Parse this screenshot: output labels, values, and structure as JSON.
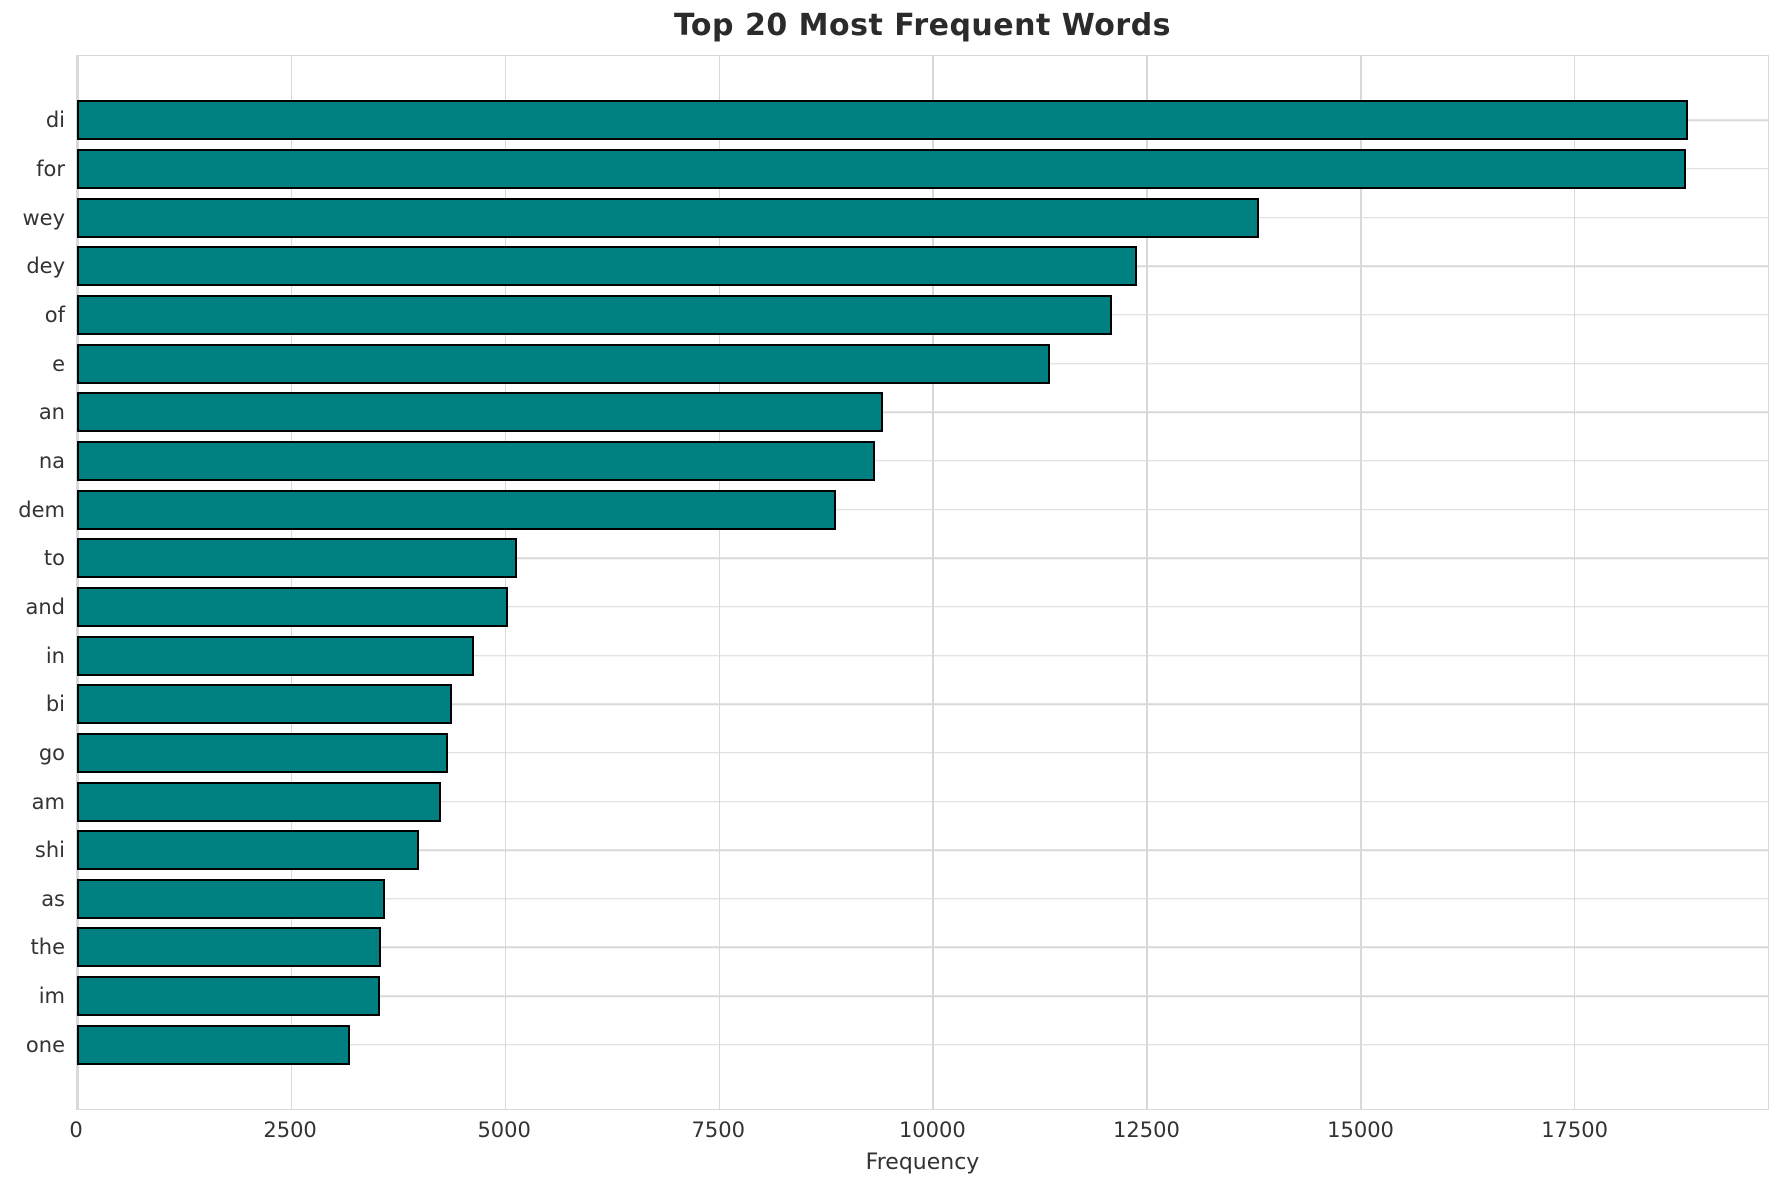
{
  "title": "Top 20 Most Frequent Words",
  "colors": {
    "bar_fill": "#008080",
    "bar_edge": "#000000",
    "grid": "#d9d9d9",
    "text": "#333333",
    "title_text": "#2b2b2b",
    "background": "#ffffff"
  },
  "chart_data": {
    "type": "bar",
    "orientation": "horizontal",
    "title": "Top 20 Most Frequent Words",
    "xlabel": "Frequency",
    "ylabel": "",
    "categories": [
      "di",
      "for",
      "wey",
      "dey",
      "of",
      "e",
      "an",
      "na",
      "dem",
      "to",
      "and",
      "in",
      "bi",
      "go",
      "am",
      "shi",
      "as",
      "the",
      "im",
      "one"
    ],
    "values": [
      18830,
      18810,
      13820,
      12390,
      12100,
      11370,
      9420,
      9330,
      8870,
      5140,
      5040,
      4640,
      4380,
      4340,
      4250,
      4000,
      3600,
      3560,
      3540,
      3190
    ],
    "xlim": [
      0,
      19770
    ],
    "xticks": [
      0,
      2500,
      5000,
      7500,
      10000,
      12500,
      15000,
      17500
    ],
    "xtick_labels": [
      "0",
      "2500",
      "5000",
      "7500",
      "10000",
      "12500",
      "15000",
      "17500"
    ],
    "grid": "on",
    "legend": "none"
  }
}
